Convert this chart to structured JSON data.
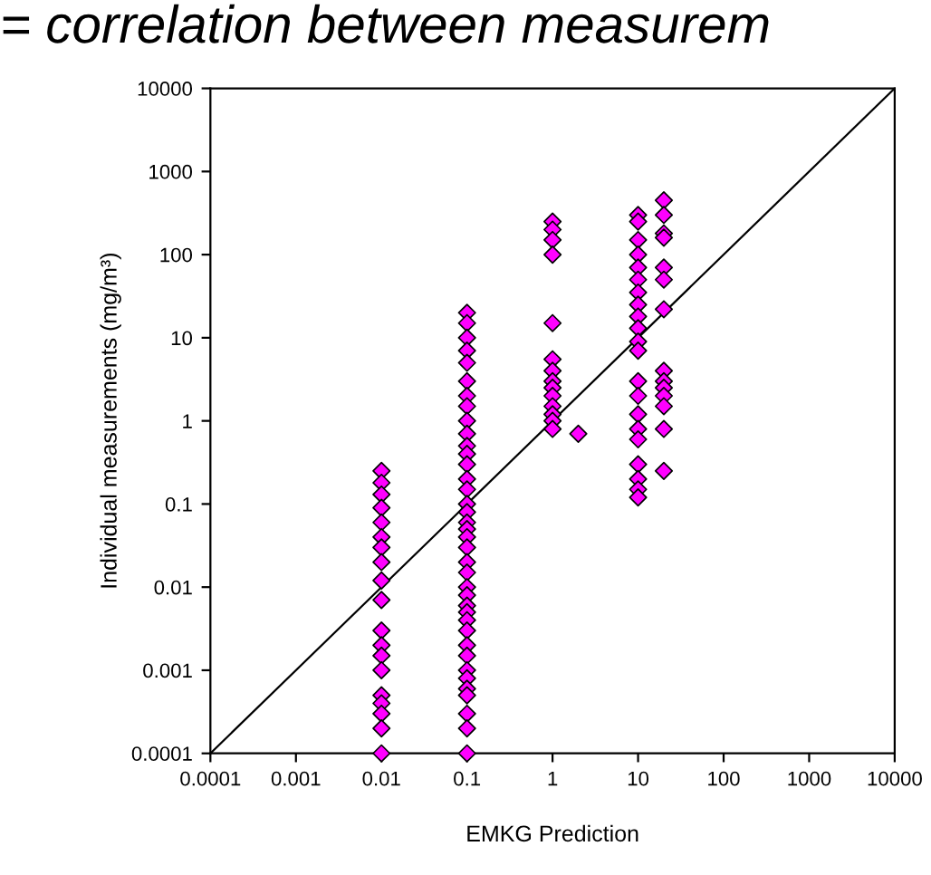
{
  "chart_data": {
    "type": "scatter",
    "title": "= correlation between measurem",
    "xlabel": "EMKG Prediction",
    "ylabel": "Individual measurements (mg/m³)",
    "log": "xy",
    "grid": false,
    "legend": false,
    "xlim": [
      0.0001,
      10000
    ],
    "ylim": [
      0.0001,
      10000
    ],
    "xticks": [
      {
        "value": 0.0001,
        "label": "0.0001"
      },
      {
        "value": 0.001,
        "label": "0.001"
      },
      {
        "value": 0.01,
        "label": "0.01"
      },
      {
        "value": 0.1,
        "label": "0.1"
      },
      1,
      10,
      100,
      1000,
      10000
    ],
    "yticks": [
      {
        "value": 0.0001,
        "label": "0.0001"
      },
      {
        "value": 0.001,
        "label": "0.001"
      },
      {
        "value": 0.01,
        "label": "0.01"
      },
      {
        "value": 0.1,
        "label": "0.1"
      },
      1,
      10,
      100,
      1000,
      10000
    ],
    "series": [
      {
        "marker": "diamond",
        "color": "#ff00ff",
        "x": [
          0.01,
          0.01,
          0.01,
          0.01,
          0.01,
          0.01,
          0.01,
          0.01,
          0.01,
          0.01,
          0.01,
          0.01,
          0.01,
          0.01,
          0.01,
          0.01,
          0.01,
          0.01,
          0.01,
          0.1,
          0.1,
          0.1,
          0.1,
          0.1,
          0.1,
          0.1,
          0.1,
          0.1,
          0.1,
          0.1,
          0.1,
          0.1,
          0.1,
          0.1,
          0.1,
          0.1,
          0.1,
          0.1,
          0.1,
          0.1,
          0.1,
          0.1,
          0.1,
          0.1,
          0.1,
          0.1,
          0.1,
          0.1,
          0.1,
          0.1,
          0.1,
          0.1,
          0.1,
          0.1,
          0.1,
          0.1,
          0.1,
          1,
          1,
          1,
          1,
          1,
          1,
          1,
          1,
          1,
          1,
          1,
          1,
          1,
          1,
          2,
          10,
          10,
          10,
          10,
          10,
          10,
          10,
          10,
          10,
          10,
          10,
          10,
          10,
          10,
          10,
          10,
          10,
          10,
          10,
          10,
          10,
          20,
          20,
          20,
          20,
          20,
          20,
          20,
          20,
          20,
          20,
          20,
          20,
          20,
          20
        ],
        "values": [
          0.25,
          0.18,
          0.13,
          0.09,
          0.06,
          0.04,
          0.03,
          0.02,
          0.012,
          0.007,
          0.003,
          0.002,
          0.0015,
          0.001,
          0.0005,
          0.0004,
          0.0003,
          0.0002,
          0.0001,
          20,
          15,
          10,
          7,
          5,
          3,
          2,
          1.5,
          1,
          0.7,
          0.5,
          0.4,
          0.3,
          0.2,
          0.15,
          0.1,
          0.08,
          0.06,
          0.05,
          0.04,
          0.03,
          0.02,
          0.015,
          0.01,
          0.008,
          0.006,
          0.005,
          0.004,
          0.003,
          0.002,
          0.0015,
          0.001,
          0.0008,
          0.0006,
          0.0005,
          0.0003,
          0.0002,
          0.0001,
          250,
          200,
          150,
          100,
          15,
          5.5,
          4,
          3,
          2.5,
          2,
          1.5,
          1.2,
          1,
          0.8,
          0.7,
          300,
          250,
          150,
          100,
          70,
          50,
          35,
          25,
          18,
          13,
          9,
          7,
          3,
          2,
          1.2,
          0.8,
          0.6,
          0.3,
          0.2,
          0.15,
          0.12,
          450,
          300,
          180,
          160,
          70,
          50,
          22,
          4,
          3,
          2.5,
          2,
          1.5,
          0.8,
          0.25
        ]
      },
      {
        "type": "line",
        "marker": "none",
        "color": "#000000",
        "x": [
          0.0001,
          10000
        ],
        "values": [
          0.0001,
          10000
        ]
      }
    ]
  }
}
